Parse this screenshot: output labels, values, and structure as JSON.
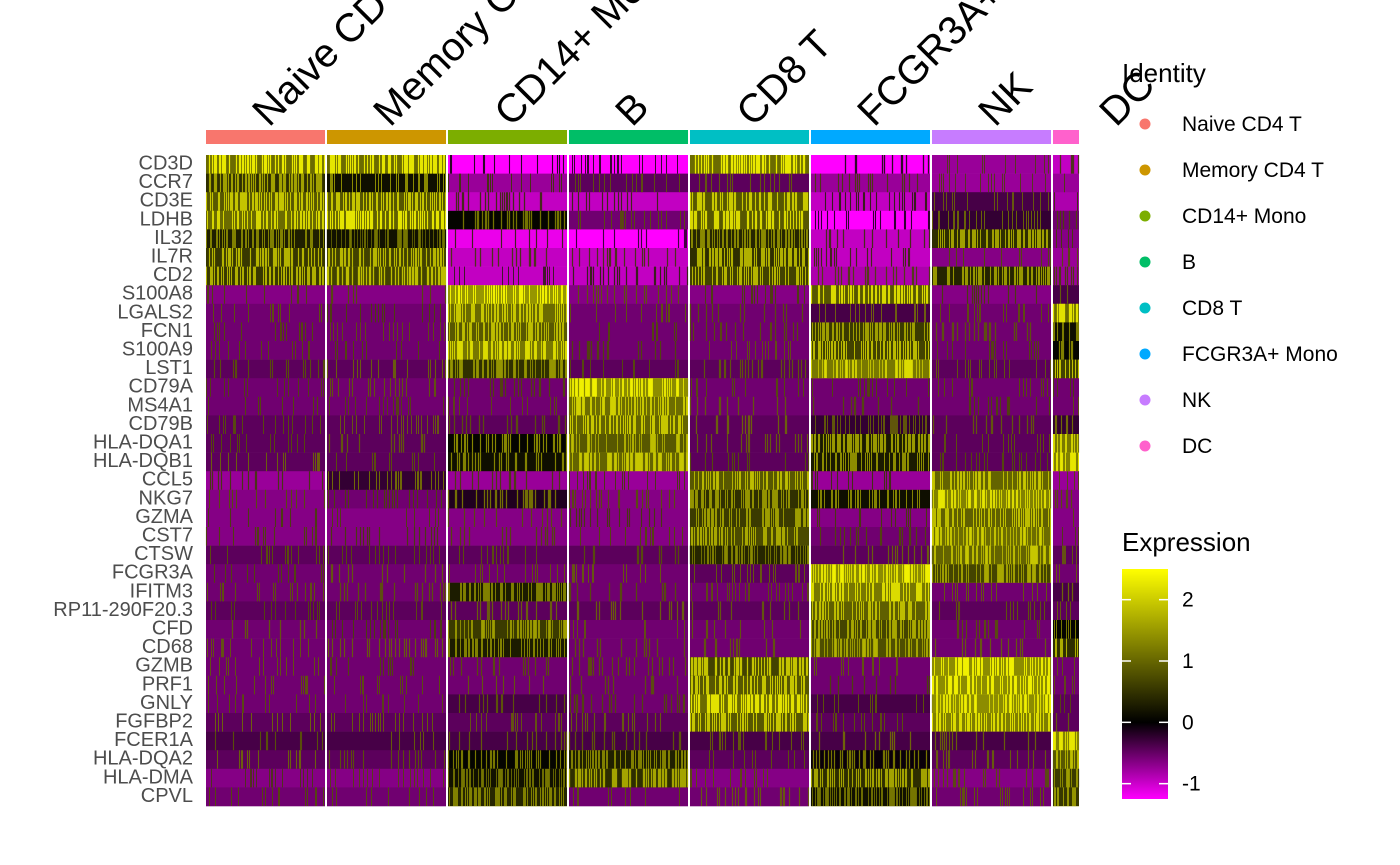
{
  "chart_data": {
    "type": "heatmap",
    "genes": [
      "CD3D",
      "CCR7",
      "CD3E",
      "LDHB",
      "IL32",
      "IL7R",
      "CD2",
      "S100A8",
      "LGALS2",
      "FCN1",
      "S100A9",
      "LST1",
      "CD79A",
      "MS4A1",
      "CD79B",
      "HLA-DQA1",
      "HLA-DQB1",
      "CCL5",
      "NKG7",
      "GZMA",
      "CST7",
      "CTSW",
      "FCGR3A",
      "IFITM3",
      "RP11-290F20.3",
      "CFD",
      "CD68",
      "GZMB",
      "PRF1",
      "GNLY",
      "FGFBP2",
      "FCER1A",
      "HLA-DQA2",
      "HLA-DMA",
      "CPVL"
    ],
    "clusters": [
      {
        "name": "Naive CD4 T",
        "display_label": "Naive CD",
        "color": "#F8766D",
        "cells": 119
      },
      {
        "name": "Memory CD4 T",
        "display_label": "Memory C",
        "color": "#CD9600",
        "cells": 119
      },
      {
        "name": "CD14+ Mono",
        "display_label": "CD14+ Mo",
        "color": "#7CAE00",
        "cells": 119
      },
      {
        "name": "B",
        "display_label": "B",
        "color": "#00BE67",
        "cells": 119
      },
      {
        "name": "CD8 T",
        "display_label": "CD8 T",
        "color": "#00BFC4",
        "cells": 119
      },
      {
        "name": "FCGR3A+ Mono",
        "display_label": "FCGR3A+",
        "color": "#00A9FF",
        "cells": 119
      },
      {
        "name": "NK",
        "display_label": "NK",
        "color": "#C77CFF",
        "cells": 119
      },
      {
        "name": "DC",
        "display_label": "DC",
        "color": "#FF61CC",
        "cells": 26
      }
    ],
    "mean_expression": [
      [
        1.2,
        1.2,
        -1.2,
        -1.2,
        1.2,
        -1.2,
        -0.6,
        -0.8
      ],
      [
        0.6,
        0.3,
        -0.6,
        -0.3,
        -0.3,
        -0.6,
        -0.6,
        -0.6
      ],
      [
        1.0,
        1.0,
        -0.8,
        -0.8,
        1.0,
        -0.8,
        -0.2,
        -0.7
      ],
      [
        1.2,
        1.1,
        0.2,
        -0.4,
        1.0,
        -1.3,
        -0.1,
        -0.4
      ],
      [
        1.4,
        1.3,
        -1.0,
        -1.3,
        1.5,
        -0.8,
        0.6,
        -0.5
      ],
      [
        0.7,
        0.8,
        -0.8,
        -0.8,
        0.6,
        -0.8,
        -0.5,
        -0.6
      ],
      [
        0.7,
        0.8,
        -0.8,
        -0.8,
        0.8,
        -0.7,
        0.5,
        -0.6
      ],
      [
        -0.5,
        -0.5,
        2.5,
        -0.5,
        -0.5,
        1.0,
        -0.5,
        -0.2
      ],
      [
        -0.4,
        -0.4,
        2.1,
        -0.4,
        -0.4,
        -0.2,
        -0.4,
        1.2
      ],
      [
        -0.4,
        -0.4,
        2.0,
        -0.4,
        -0.4,
        1.7,
        -0.4,
        0.3
      ],
      [
        -0.4,
        -0.4,
        2.3,
        -0.4,
        -0.4,
        0.8,
        -0.4,
        0.2
      ],
      [
        -0.3,
        -0.3,
        1.6,
        -0.3,
        -0.3,
        2.3,
        -0.3,
        0.8
      ],
      [
        -0.4,
        -0.4,
        -0.4,
        2.5,
        -0.4,
        -0.4,
        -0.4,
        -0.4
      ],
      [
        -0.4,
        -0.4,
        -0.4,
        2.2,
        -0.4,
        -0.4,
        -0.4,
        -0.4
      ],
      [
        -0.3,
        -0.3,
        -0.3,
        2.1,
        -0.3,
        -0.1,
        -0.3,
        -0.1
      ],
      [
        -0.3,
        -0.3,
        0.2,
        2.0,
        -0.3,
        0.4,
        -0.3,
        2.3
      ],
      [
        -0.3,
        -0.3,
        0.3,
        2.1,
        -0.3,
        0.4,
        -0.3,
        2.4
      ],
      [
        -0.6,
        -0.1,
        -0.6,
        -0.6,
        2.0,
        -0.6,
        2.1,
        -0.6
      ],
      [
        -0.5,
        -0.4,
        0.0,
        -0.5,
        1.6,
        0.3,
        2.4,
        -0.5
      ],
      [
        -0.5,
        -0.5,
        -0.5,
        -0.5,
        1.7,
        -0.5,
        2.0,
        -0.5
      ],
      [
        -0.5,
        -0.5,
        -0.5,
        -0.5,
        1.8,
        -0.4,
        2.2,
        -0.5
      ],
      [
        -0.3,
        -0.3,
        -0.3,
        -0.3,
        1.5,
        -0.3,
        2.1,
        -0.3
      ],
      [
        -0.4,
        -0.4,
        -0.4,
        -0.4,
        -0.3,
        2.5,
        1.8,
        -0.4
      ],
      [
        -0.4,
        -0.4,
        1.4,
        -0.4,
        -0.4,
        2.3,
        -0.4,
        -0.2
      ],
      [
        -0.3,
        -0.3,
        -0.3,
        -0.3,
        -0.3,
        2.0,
        -0.3,
        -0.3
      ],
      [
        -0.4,
        -0.4,
        1.7,
        -0.4,
        -0.4,
        1.8,
        -0.4,
        0.2
      ],
      [
        -0.4,
        -0.4,
        1.4,
        -0.4,
        -0.4,
        1.9,
        -0.4,
        0.6
      ],
      [
        -0.4,
        -0.4,
        -0.4,
        -0.4,
        0.8,
        -0.4,
        2.5,
        -0.4
      ],
      [
        -0.4,
        -0.4,
        -0.4,
        -0.4,
        1.0,
        -0.4,
        2.5,
        -0.4
      ],
      [
        -0.4,
        -0.4,
        -0.2,
        -0.4,
        1.2,
        -0.2,
        2.5,
        -0.3
      ],
      [
        -0.3,
        -0.3,
        -0.3,
        -0.3,
        1.0,
        -0.3,
        2.3,
        -0.3
      ],
      [
        -0.2,
        -0.2,
        -0.2,
        -0.2,
        -0.2,
        -0.2,
        -0.2,
        2.4
      ],
      [
        -0.3,
        -0.3,
        0.2,
        1.4,
        -0.3,
        0.1,
        -0.3,
        2.0
      ],
      [
        -0.5,
        -0.5,
        1.3,
        0.6,
        -0.5,
        0.6,
        -0.5,
        1.7
      ],
      [
        -0.4,
        -0.4,
        1.4,
        -0.4,
        -0.4,
        1.3,
        -0.4,
        1.6
      ]
    ],
    "color_scale": {
      "low": "#FF00FF",
      "mid": "#000000",
      "high": "#FFFF00",
      "limits": [
        -1.25,
        2.5
      ],
      "breaks": [
        -1,
        0,
        1,
        2
      ]
    },
    "legend": {
      "identity_title": "Identity",
      "expression_title": "Expression",
      "identity_entries": [
        "Naive CD4 T",
        "Memory CD4 T",
        "CD14+ Mono",
        "B",
        "CD8 T",
        "FCGR3A+ Mono",
        "NK",
        "DC"
      ],
      "expression_tick_labels": [
        "-1",
        "0",
        "1",
        "2"
      ],
      "placement": "right"
    }
  }
}
